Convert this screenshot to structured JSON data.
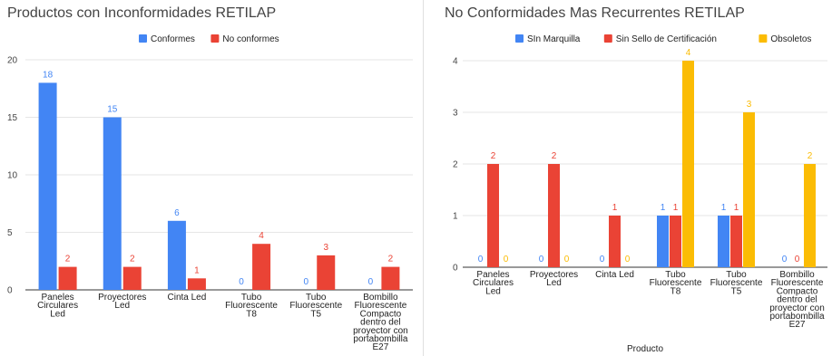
{
  "colors": {
    "blue": "#4285f4",
    "red": "#ea4335",
    "yellow": "#fbbc04",
    "grid": "#e6e6e6",
    "baseline": "#333333"
  },
  "chart_data": [
    {
      "type": "bar",
      "title": "Productos con Inconformidades RETILAP",
      "xlabel": "",
      "ylabel": "",
      "ylim": [
        0,
        20
      ],
      "yticks": [
        0,
        5,
        10,
        15,
        20
      ],
      "legend_position": "top",
      "categories": [
        [
          "Paneles",
          "Circulares",
          "Led"
        ],
        [
          "Proyectores",
          "Led"
        ],
        [
          "Cinta Led"
        ],
        [
          "Tubo",
          "Fluorescente",
          "T8"
        ],
        [
          "Tubo",
          "Fluorescente",
          "T5"
        ],
        [
          "Bombillo",
          "Fluorescente",
          "Compacto",
          "dentro del",
          "proyector con",
          "portabombilla",
          "E27"
        ]
      ],
      "series": [
        {
          "name": "Conformes",
          "color": "#4285f4",
          "values": [
            18,
            15,
            6,
            0,
            0,
            0
          ]
        },
        {
          "name": "No conformes",
          "color": "#ea4335",
          "values": [
            2,
            2,
            1,
            4,
            3,
            2
          ]
        }
      ]
    },
    {
      "type": "bar",
      "title": "No Conformidades Mas Recurrentes RETILAP",
      "xlabel": "Producto",
      "ylabel": "",
      "ylim": [
        0,
        4
      ],
      "yticks": [
        0,
        1,
        2,
        3,
        4
      ],
      "legend_position": "top",
      "categories": [
        [
          "Paneles",
          "Circulares",
          "Led"
        ],
        [
          "Proyectores",
          "Led"
        ],
        [
          "Cinta Led"
        ],
        [
          "Tubo",
          "Fluorescente",
          "T8"
        ],
        [
          "Tubo",
          "Fluorescente",
          "T5"
        ],
        [
          "Bombillo",
          "Fluorescente",
          "Compacto",
          "dentro del",
          "proyector con",
          "portabombilla",
          "E27"
        ]
      ],
      "series": [
        {
          "name": "SIn Marquilla",
          "color": "#4285f4",
          "values": [
            0,
            0,
            0,
            1,
            1,
            0
          ]
        },
        {
          "name": "Sin Sello de Certificación",
          "color": "#ea4335",
          "values": [
            2,
            2,
            1,
            1,
            1,
            0
          ]
        },
        {
          "name": "Obsoletos",
          "color": "#fbbc04",
          "values": [
            0,
            0,
            0,
            4,
            3,
            2
          ]
        }
      ]
    }
  ]
}
